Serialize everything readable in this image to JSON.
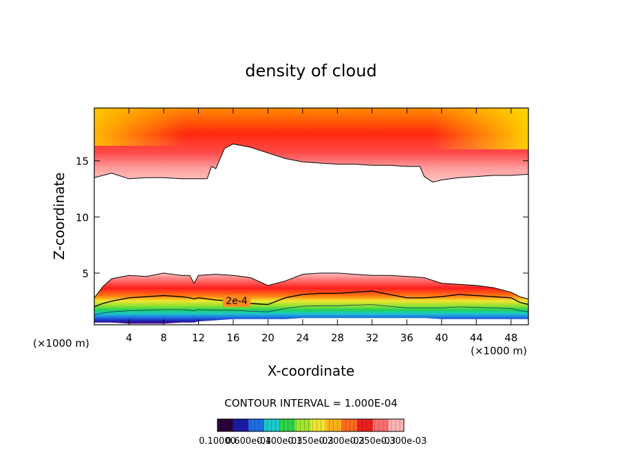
{
  "chart_data": {
    "type": "heatmap",
    "title": "density of cloud",
    "xlabel": "X-coordinate",
    "ylabel": "Z-coordinate",
    "x_unit_left": "(×1000 m)",
    "x_unit_right": "(×1000 m)",
    "xlim": [
      0,
      50
    ],
    "ylim": [
      0.4,
      19.7
    ],
    "x_ticks": [
      4,
      8,
      12,
      16,
      20,
      24,
      28,
      32,
      36,
      40,
      44,
      48
    ],
    "x_tick_labels": [
      "4",
      "8",
      "12",
      "16",
      "20",
      "24",
      "28",
      "32",
      "36",
      "40",
      "44",
      "48"
    ],
    "y_ticks": [
      5,
      10,
      15
    ],
    "y_tick_labels": [
      "5",
      "10",
      "15"
    ],
    "contour_interval_text": "CONTOUR INTERVAL = 1.000E-04",
    "contour_label": "2e-4",
    "colorbar_labels": [
      "0.10000",
      "0.600e-04",
      "0.100e-03",
      "0.150e-03",
      "0.200e-03",
      "0.250e-03",
      "0.300e-03"
    ],
    "colorbar_colors": [
      "#2a003a",
      "#1c1aa8",
      "#1e6ee6",
      "#1ec8c8",
      "#2ed24a",
      "#a0e62e",
      "#f0e632",
      "#ffb01e",
      "#ff6a1e",
      "#f01e1e",
      "#ff6e6e",
      "#ffb4b4"
    ],
    "upper_layer": {
      "x": [
        0,
        2,
        4,
        6,
        8,
        10,
        12,
        13,
        13.5,
        14,
        15,
        16,
        18,
        20,
        22,
        24,
        26,
        28,
        30,
        32,
        34,
        36,
        37.5,
        38,
        39,
        40,
        42,
        44,
        46,
        48,
        50
      ],
      "cloud_base": [
        13.5,
        13.9,
        13.4,
        13.5,
        13.5,
        13.4,
        13.4,
        13.4,
        14.5,
        14.3,
        16.1,
        16.5,
        16.2,
        15.7,
        15.2,
        14.9,
        14.8,
        14.7,
        14.7,
        14.6,
        14.6,
        14.5,
        14.5,
        13.6,
        13.1,
        13.3,
        13.5,
        13.6,
        13.7,
        13.7,
        13.8
      ]
    },
    "lower_layer": {
      "x": [
        0,
        1,
        2,
        4,
        6,
        8,
        10,
        11,
        11.5,
        12,
        14,
        16,
        18,
        20,
        22,
        24,
        26,
        28,
        30,
        32,
        34,
        36,
        38,
        40,
        42,
        44,
        46,
        48,
        49,
        50
      ],
      "cloud_top": [
        2.8,
        3.8,
        4.5,
        4.8,
        4.7,
        5.0,
        4.8,
        4.8,
        4.1,
        4.8,
        4.9,
        4.8,
        4.6,
        3.9,
        4.3,
        4.9,
        5.0,
        5.0,
        4.9,
        4.8,
        4.8,
        4.7,
        4.6,
        4.1,
        4.0,
        3.9,
        3.7,
        3.3,
        2.9,
        2.7
      ],
      "contour_2e4": [
        2.0,
        2.3,
        2.5,
        2.8,
        2.9,
        3.0,
        2.9,
        2.8,
        2.7,
        2.8,
        2.6,
        2.5,
        2.3,
        2.2,
        2.8,
        3.1,
        3.2,
        3.2,
        3.3,
        3.4,
        3.1,
        2.8,
        2.8,
        2.9,
        3.1,
        3.0,
        2.9,
        2.8,
        2.4,
        2.2
      ],
      "cloud_base": [
        0.6,
        0.6,
        0.6,
        0.5,
        0.5,
        0.5,
        0.6,
        0.6,
        0.6,
        0.7,
        0.8,
        0.9,
        0.9,
        0.9,
        0.9,
        1.0,
        1.0,
        1.0,
        1.0,
        1.0,
        1.0,
        1.0,
        1.0,
        0.9,
        0.9,
        0.9,
        0.9,
        0.9,
        0.9,
        0.9
      ]
    },
    "grid": false
  }
}
